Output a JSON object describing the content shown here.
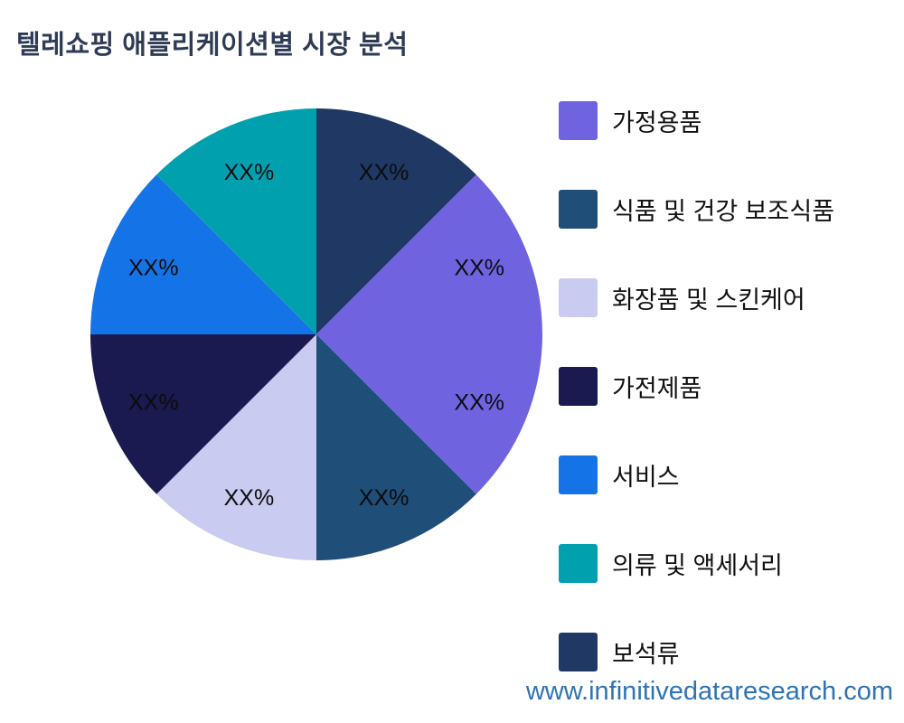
{
  "title": "텔레쇼핑 애플리케이션별 시장 분석",
  "footer": {
    "website": "www.infinitivedataresearch.com",
    "color": "#2E74B5"
  },
  "legend": {
    "position": "right",
    "items": [
      {
        "label": "가정용품",
        "color": "#6F63E0"
      },
      {
        "label": "식품 및 건강 보조식품",
        "color": "#1F4E79"
      },
      {
        "label": "화장품 및 스킨케어",
        "color": "#C9CBF0"
      },
      {
        "label": "가전제품",
        "color": "#1A1950"
      },
      {
        "label": "서비스",
        "color": "#1473E6"
      },
      {
        "label": "의류 및 액세서리",
        "color": "#00A0AF"
      },
      {
        "label": "보석류",
        "color": "#1F3864"
      }
    ]
  },
  "chart_data": {
    "type": "pie",
    "title": "텔레쇼핑 애플리케이션별 시장 분석",
    "legend_position": "right",
    "value_note": "all slice percentages displayed as XX% placeholders",
    "start_angle_deg": -90,
    "direction": "clockwise",
    "segments": [
      {
        "legend_label": "보석류",
        "color": "#1F3864",
        "value": 12.5,
        "value_label": "XX%"
      },
      {
        "legend_label": "가정용품",
        "color": "#6F63E0",
        "value": 12.5,
        "value_label": "XX%"
      },
      {
        "legend_label": "가정용품",
        "color": "#6F63E0",
        "value": 12.5,
        "value_label": "XX%"
      },
      {
        "legend_label": "식품 및 건강 보조식품",
        "color": "#1F4E79",
        "value": 12.5,
        "value_label": "XX%"
      },
      {
        "legend_label": "화장품 및 스킨케어",
        "color": "#C9CBF0",
        "value": 12.5,
        "value_label": "XX%"
      },
      {
        "legend_label": "가전제품",
        "color": "#1A1950",
        "value": 12.5,
        "value_label": "XX%"
      },
      {
        "legend_label": "서비스",
        "color": "#1473E6",
        "value": 12.5,
        "value_label": "XX%"
      },
      {
        "legend_label": "의류 및 액세서리",
        "color": "#00A0AF",
        "value": 12.5,
        "value_label": "XX%"
      }
    ]
  }
}
